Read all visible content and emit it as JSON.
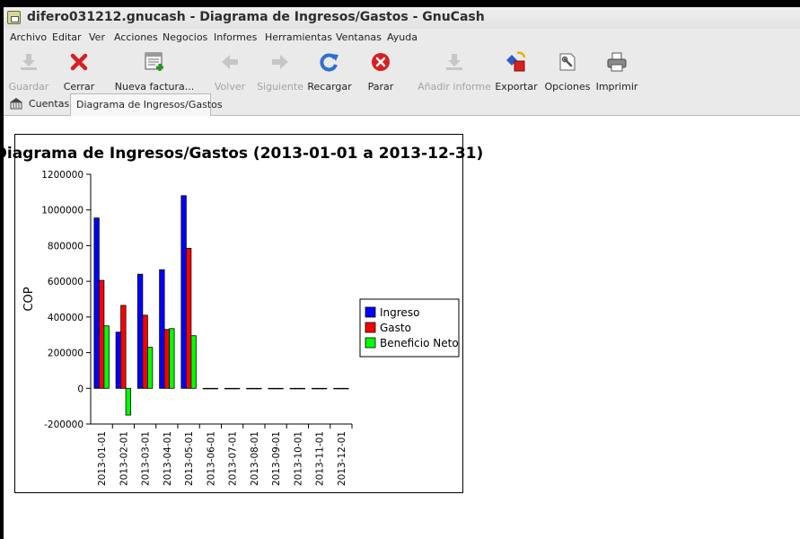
{
  "window": {
    "title": "difero031212.gnucash - Diagrama de Ingresos/Gastos - GnuCash",
    "icon": "gnucash-app-icon"
  },
  "menu": [
    "Archivo",
    "Editar",
    "Ver",
    "Acciones",
    "Negocios",
    "Informes",
    "Herramientas",
    "Ventanas",
    "Ayuda"
  ],
  "toolbar": {
    "save": "Guardar",
    "close": "Cerrar",
    "new_invoice": "Nueva factura...",
    "back": "Volver",
    "forward": "Siguiente",
    "reload": "Recargar",
    "stop": "Parar",
    "add_report": "Añadir informe",
    "export": "Exportar",
    "options": "Opciones",
    "print": "Imprimir"
  },
  "tabs": [
    {
      "label": "Cuentas",
      "icon": "accounts-home-icon",
      "active": false
    },
    {
      "label": "Diagrama de Ingresos/Gastos",
      "active": true
    }
  ],
  "chart_data": {
    "type": "bar",
    "title": "Diagrama de Ingresos/Gastos (2013-01-01 a 2013-12-31)",
    "xlabel": "",
    "ylabel": "COP",
    "ylim": [
      -200000,
      1200000
    ],
    "yticks": [
      -200000,
      0,
      200000,
      400000,
      600000,
      800000,
      1000000,
      1200000
    ],
    "categories": [
      "2013-01-01",
      "2013-02-01",
      "2013-03-01",
      "2013-04-01",
      "2013-05-01",
      "2013-06-01",
      "2013-07-01",
      "2013-08-01",
      "2013-09-01",
      "2013-10-01",
      "2013-11-01",
      "2013-12-01"
    ],
    "series": [
      {
        "name": "Ingreso",
        "color": "#0000ff",
        "values": [
          955000,
          315000,
          640000,
          665000,
          1080000,
          0,
          0,
          0,
          0,
          0,
          0,
          0
        ]
      },
      {
        "name": "Gasto",
        "color": "#ff0000",
        "values": [
          605000,
          465000,
          410000,
          330000,
          785000,
          0,
          0,
          0,
          0,
          0,
          0,
          0
        ]
      },
      {
        "name": "Beneficio Neto",
        "color": "#00ff00",
        "values": [
          350000,
          -150000,
          230000,
          335000,
          295000,
          0,
          0,
          0,
          0,
          0,
          0,
          0
        ]
      }
    ],
    "legend_position": "right",
    "grid": false
  }
}
